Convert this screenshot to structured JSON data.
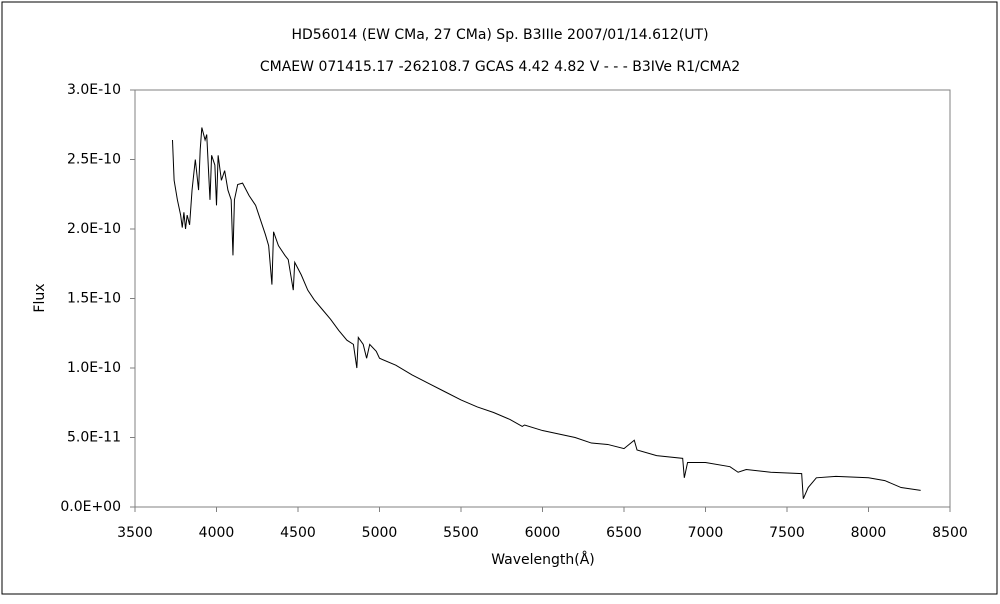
{
  "chart_data": {
    "type": "line",
    "title": "HD56014 (EW CMa,  27 CMa)   Sp. B3IIIe     2007/01/14.612(UT)",
    "subtitle": "CMAEW 071415.17 -262108.7 GCAS 4.42 4.82 V - - - B3IVe R1/CMA2",
    "x_label": "Wavelength(Å)",
    "y_label": "Flux",
    "color": "#000000",
    "grid": false,
    "xlim": [
      3500,
      8500
    ],
    "xticks": [
      3500,
      4000,
      4500,
      5000,
      5500,
      6000,
      6500,
      7000,
      7500,
      8000,
      8500
    ],
    "ylim": [
      0,
      3e-10
    ],
    "yticks": [
      {
        "value": 0,
        "label": "0.0E+00"
      },
      {
        "value": 5e-11,
        "label": "5.0E-11"
      },
      {
        "value": 1e-10,
        "label": "1.0E-10"
      },
      {
        "value": 1.5e-10,
        "label": "1.5E-10"
      },
      {
        "value": 2e-10,
        "label": "2.0E-10"
      },
      {
        "value": 2.5e-10,
        "label": "2.5E-10"
      },
      {
        "value": 3e-10,
        "label": "3.0E-10"
      }
    ],
    "x": [
      3730,
      3740,
      3760,
      3780,
      3790,
      3800,
      3810,
      3820,
      3835,
      3850,
      3870,
      3890,
      3900,
      3910,
      3930,
      3940,
      3960,
      3970,
      3990,
      4000,
      4010,
      4030,
      4050,
      4070,
      4090,
      4101,
      4110,
      4130,
      4160,
      4200,
      4240,
      4280,
      4300,
      4320,
      4340,
      4350,
      4380,
      4420,
      4440,
      4471,
      4480,
      4520,
      4560,
      4600,
      4650,
      4700,
      4750,
      4800,
      4840,
      4861,
      4870,
      4900,
      4921,
      4940,
      4980,
      5000,
      5100,
      5200,
      5300,
      5400,
      5500,
      5600,
      5700,
      5800,
      5876,
      5890,
      6000,
      6200,
      6300,
      6400,
      6500,
      6563,
      6580,
      6700,
      6860,
      6870,
      6890,
      7000,
      7150,
      7200,
      7250,
      7400,
      7590,
      7600,
      7630,
      7680,
      7800,
      8000,
      8100,
      8200,
      8320
    ],
    "values": [
      2.64e-10,
      2.35e-10,
      2.21e-10,
      2.1e-10,
      2.01e-10,
      2.12e-10,
      2e-10,
      2.1e-10,
      2.03e-10,
      2.28e-10,
      2.5e-10,
      2.28e-10,
      2.57e-10,
      2.73e-10,
      2.64e-10,
      2.68e-10,
      2.21e-10,
      2.53e-10,
      2.46e-10,
      2.17e-10,
      2.53e-10,
      2.35e-10,
      2.42e-10,
      2.28e-10,
      2.21e-10,
      1.81e-10,
      2.21e-10,
      2.32e-10,
      2.33e-10,
      2.24e-10,
      2.17e-10,
      2.03e-10,
      1.96e-10,
      1.88e-10,
      1.6e-10,
      1.98e-10,
      1.88e-10,
      1.81e-10,
      1.78e-10,
      1.56e-10,
      1.76e-10,
      1.67e-10,
      1.56e-10,
      1.49e-10,
      1.42e-10,
      1.35e-10,
      1.27e-10,
      1.2e-10,
      1.17e-10,
      1e-10,
      1.22e-10,
      1.17e-10,
      1.07e-10,
      1.17e-10,
      1.12e-10,
      1.07e-10,
      1.02e-10,
      9.5e-11,
      8.9e-11,
      8.3e-11,
      7.7e-11,
      7.2e-11,
      6.8e-11,
      6.3e-11,
      5.8e-11,
      5.9e-11,
      5.5e-11,
      5e-11,
      4.6e-11,
      4.5e-11,
      4.2e-11,
      4.8e-11,
      4.1e-11,
      3.7e-11,
      3.5e-11,
      2.1e-11,
      3.2e-11,
      3.2e-11,
      2.9e-11,
      2.5e-11,
      2.7e-11,
      2.5e-11,
      2.4e-11,
      6e-12,
      1.4e-11,
      2.1e-11,
      2.2e-11,
      2.1e-11,
      1.9e-11,
      1.4e-11,
      1.2e-11
    ]
  }
}
